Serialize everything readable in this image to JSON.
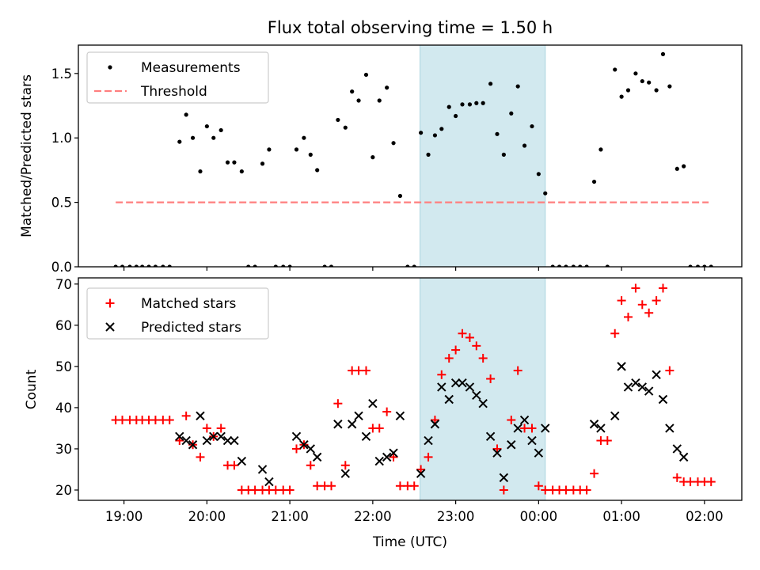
{
  "chart_data": [
    {
      "type": "scatter",
      "title": "Flux total observing time = 1.50 h",
      "xlabel": "",
      "ylabel": "Matched/Predicted stars",
      "ylim": [
        0,
        1.72
      ],
      "yticks": [
        0.0,
        0.5,
        1.0,
        1.5
      ],
      "ytick_labels": [
        "0.0",
        "0.5",
        "1.0",
        "1.5"
      ],
      "legend_location": "upper-left",
      "legend": [
        "Measurements",
        "Threshold"
      ],
      "shaded_region": {
        "x_start": 22.57,
        "x_end": 24.08,
        "color": "#d2e9ef"
      },
      "threshold": {
        "name": "Threshold",
        "y": 0.5,
        "x_start": 18.9,
        "x_end": 26.05,
        "color": "#ff7f7f"
      },
      "series": [
        {
          "name": "Measurements",
          "marker": "dot",
          "color": "#000000",
          "points": [
            [
              18.9,
              0
            ],
            [
              18.98,
              0
            ],
            [
              19.07,
              0
            ],
            [
              19.15,
              0
            ],
            [
              19.22,
              0
            ],
            [
              19.3,
              0
            ],
            [
              19.38,
              0
            ],
            [
              19.47,
              0
            ],
            [
              19.55,
              0
            ],
            [
              19.67,
              0.97
            ],
            [
              19.75,
              1.18
            ],
            [
              19.83,
              1.0
            ],
            [
              19.92,
              0.74
            ],
            [
              20.0,
              1.09
            ],
            [
              20.08,
              1.0
            ],
            [
              20.17,
              1.06
            ],
            [
              20.25,
              0.81
            ],
            [
              20.33,
              0.81
            ],
            [
              20.42,
              0.74
            ],
            [
              20.5,
              0
            ],
            [
              20.58,
              0
            ],
            [
              20.67,
              0.8
            ],
            [
              20.75,
              0.91
            ],
            [
              20.83,
              0
            ],
            [
              20.92,
              0
            ],
            [
              21.0,
              0
            ],
            [
              21.08,
              0.91
            ],
            [
              21.17,
              1.0
            ],
            [
              21.25,
              0.87
            ],
            [
              21.33,
              0.75
            ],
            [
              21.42,
              0
            ],
            [
              21.5,
              0
            ],
            [
              21.58,
              1.14
            ],
            [
              21.67,
              1.08
            ],
            [
              21.75,
              1.36
            ],
            [
              21.83,
              1.29
            ],
            [
              21.92,
              1.49
            ],
            [
              22.0,
              0.85
            ],
            [
              22.08,
              1.29
            ],
            [
              22.17,
              1.39
            ],
            [
              22.25,
              0.96
            ],
            [
              22.33,
              0.55
            ],
            [
              22.42,
              0
            ],
            [
              22.5,
              0
            ],
            [
              22.58,
              1.04
            ],
            [
              22.67,
              0.87
            ],
            [
              22.75,
              1.02
            ],
            [
              22.83,
              1.07
            ],
            [
              22.92,
              1.24
            ],
            [
              23.0,
              1.17
            ],
            [
              23.08,
              1.26
            ],
            [
              23.17,
              1.26
            ],
            [
              23.25,
              1.27
            ],
            [
              23.33,
              1.27
            ],
            [
              23.42,
              1.42
            ],
            [
              23.5,
              1.03
            ],
            [
              23.58,
              0.87
            ],
            [
              23.67,
              1.19
            ],
            [
              23.75,
              1.4
            ],
            [
              23.83,
              0.94
            ],
            [
              23.92,
              1.09
            ],
            [
              24.0,
              0.72
            ],
            [
              24.08,
              0.57
            ],
            [
              24.17,
              0
            ],
            [
              24.25,
              0
            ],
            [
              24.33,
              0
            ],
            [
              24.42,
              0
            ],
            [
              24.5,
              0
            ],
            [
              24.58,
              0
            ],
            [
              24.67,
              0.66
            ],
            [
              24.75,
              0.91
            ],
            [
              24.83,
              0
            ],
            [
              24.92,
              1.53
            ],
            [
              25.0,
              1.32
            ],
            [
              25.08,
              1.37
            ],
            [
              25.17,
              1.5
            ],
            [
              25.25,
              1.44
            ],
            [
              25.33,
              1.43
            ],
            [
              25.42,
              1.37
            ],
            [
              25.5,
              1.65
            ],
            [
              25.58,
              1.4
            ],
            [
              25.67,
              0.76
            ],
            [
              25.75,
              0.78
            ],
            [
              25.83,
              0
            ],
            [
              25.92,
              0
            ],
            [
              26.0,
              0
            ],
            [
              26.08,
              0
            ]
          ]
        }
      ]
    },
    {
      "type": "scatter",
      "title": "",
      "xlabel": "Time (UTC)",
      "ylabel": "Count",
      "ylim": [
        17.5,
        71.5
      ],
      "yticks": [
        20,
        30,
        40,
        50,
        60,
        70
      ],
      "ytick_labels": [
        "20",
        "30",
        "40",
        "50",
        "60",
        "70"
      ],
      "xlim": [
        18.45,
        26.45
      ],
      "xticks": [
        19,
        20,
        21,
        22,
        23,
        24,
        25,
        26
      ],
      "xtick_labels": [
        "19:00",
        "20:00",
        "21:00",
        "22:00",
        "23:00",
        "00:00",
        "01:00",
        "02:00"
      ],
      "legend_location": "upper-left",
      "legend": [
        "Matched stars",
        "Predicted stars"
      ],
      "shaded_region": {
        "x_start": 22.57,
        "x_end": 24.08,
        "color": "#d2e9ef"
      },
      "series": [
        {
          "name": "Matched stars",
          "marker": "plus",
          "color": "#ff0000",
          "points": [
            [
              18.9,
              37
            ],
            [
              18.98,
              37
            ],
            [
              19.07,
              37
            ],
            [
              19.15,
              37
            ],
            [
              19.22,
              37
            ],
            [
              19.3,
              37
            ],
            [
              19.38,
              37
            ],
            [
              19.47,
              37
            ],
            [
              19.55,
              37
            ],
            [
              19.67,
              32
            ],
            [
              19.75,
              38
            ],
            [
              19.83,
              31
            ],
            [
              19.92,
              28
            ],
            [
              20.0,
              35
            ],
            [
              20.08,
              33
            ],
            [
              20.17,
              35
            ],
            [
              20.25,
              26
            ],
            [
              20.33,
              26
            ],
            [
              20.42,
              20
            ],
            [
              20.5,
              20
            ],
            [
              20.58,
              20
            ],
            [
              20.67,
              20
            ],
            [
              20.75,
              20
            ],
            [
              20.83,
              20
            ],
            [
              20.92,
              20
            ],
            [
              21.0,
              20
            ],
            [
              21.08,
              30
            ],
            [
              21.17,
              31
            ],
            [
              21.25,
              26
            ],
            [
              21.33,
              21
            ],
            [
              21.42,
              21
            ],
            [
              21.5,
              21
            ],
            [
              21.58,
              41
            ],
            [
              21.67,
              26
            ],
            [
              21.75,
              49
            ],
            [
              21.83,
              49
            ],
            [
              21.92,
              49
            ],
            [
              22.0,
              35
            ],
            [
              22.08,
              35
            ],
            [
              22.17,
              39
            ],
            [
              22.25,
              28
            ],
            [
              22.33,
              21
            ],
            [
              22.42,
              21
            ],
            [
              22.5,
              21
            ],
            [
              22.58,
              25
            ],
            [
              22.67,
              28
            ],
            [
              22.75,
              37
            ],
            [
              22.83,
              48
            ],
            [
              22.92,
              52
            ],
            [
              23.0,
              54
            ],
            [
              23.08,
              58
            ],
            [
              23.17,
              57
            ],
            [
              23.25,
              55
            ],
            [
              23.33,
              52
            ],
            [
              23.42,
              47
            ],
            [
              23.5,
              30
            ],
            [
              23.58,
              20
            ],
            [
              23.67,
              37
            ],
            [
              23.75,
              49
            ],
            [
              23.83,
              35
            ],
            [
              23.92,
              35
            ],
            [
              24.0,
              21
            ],
            [
              24.08,
              20
            ],
            [
              24.17,
              20
            ],
            [
              24.25,
              20
            ],
            [
              24.33,
              20
            ],
            [
              24.42,
              20
            ],
            [
              24.5,
              20
            ],
            [
              24.58,
              20
            ],
            [
              24.67,
              24
            ],
            [
              24.75,
              32
            ],
            [
              24.83,
              32
            ],
            [
              24.92,
              58
            ],
            [
              25.0,
              66
            ],
            [
              25.08,
              62
            ],
            [
              25.17,
              69
            ],
            [
              25.25,
              65
            ],
            [
              25.33,
              63
            ],
            [
              25.42,
              66
            ],
            [
              25.5,
              69
            ],
            [
              25.58,
              49
            ],
            [
              25.67,
              23
            ],
            [
              25.75,
              22
            ],
            [
              25.83,
              22
            ],
            [
              25.92,
              22
            ],
            [
              26.0,
              22
            ],
            [
              26.08,
              22
            ]
          ]
        },
        {
          "name": "Predicted stars",
          "marker": "x",
          "color": "#000000",
          "points": [
            [
              19.67,
              33
            ],
            [
              19.75,
              32
            ],
            [
              19.83,
              31
            ],
            [
              19.92,
              38
            ],
            [
              20.0,
              32
            ],
            [
              20.08,
              33
            ],
            [
              20.17,
              33
            ],
            [
              20.25,
              32
            ],
            [
              20.33,
              32
            ],
            [
              20.42,
              27
            ],
            [
              20.67,
              25
            ],
            [
              20.75,
              22
            ],
            [
              21.08,
              33
            ],
            [
              21.17,
              31
            ],
            [
              21.25,
              30
            ],
            [
              21.33,
              28
            ],
            [
              21.58,
              36
            ],
            [
              21.67,
              24
            ],
            [
              21.75,
              36
            ],
            [
              21.83,
              38
            ],
            [
              21.92,
              33
            ],
            [
              22.0,
              41
            ],
            [
              22.08,
              27
            ],
            [
              22.17,
              28
            ],
            [
              22.25,
              29
            ],
            [
              22.33,
              38
            ],
            [
              22.58,
              24
            ],
            [
              22.67,
              32
            ],
            [
              22.75,
              36
            ],
            [
              22.83,
              45
            ],
            [
              22.92,
              42
            ],
            [
              23.0,
              46
            ],
            [
              23.08,
              46
            ],
            [
              23.17,
              45
            ],
            [
              23.25,
              43
            ],
            [
              23.33,
              41
            ],
            [
              23.42,
              33
            ],
            [
              23.5,
              29
            ],
            [
              23.58,
              23
            ],
            [
              23.67,
              31
            ],
            [
              23.75,
              35
            ],
            [
              23.83,
              37
            ],
            [
              23.92,
              32
            ],
            [
              24.0,
              29
            ],
            [
              24.08,
              35
            ],
            [
              24.67,
              36
            ],
            [
              24.75,
              35
            ],
            [
              24.92,
              38
            ],
            [
              25.0,
              50
            ],
            [
              25.08,
              45
            ],
            [
              25.17,
              46
            ],
            [
              25.25,
              45
            ],
            [
              25.33,
              44
            ],
            [
              25.42,
              48
            ],
            [
              25.5,
              42
            ],
            [
              25.58,
              35
            ],
            [
              25.67,
              30
            ],
            [
              25.75,
              28
            ]
          ]
        }
      ]
    }
  ]
}
